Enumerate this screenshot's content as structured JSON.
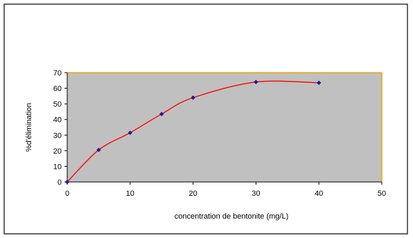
{
  "chart_data": {
    "type": "line",
    "title": "",
    "xlabel": "concentration de bentonite (mg/L)",
    "ylabel": "%d'élimination",
    "xlim": [
      0,
      50
    ],
    "ylim": [
      0,
      70
    ],
    "x_ticks": [
      0,
      10,
      20,
      30,
      40,
      50
    ],
    "y_ticks": [
      0,
      10,
      20,
      30,
      40,
      50,
      60,
      70
    ],
    "grid": false,
    "legend": "none",
    "plot_background": "#c0c0c0",
    "series": [
      {
        "x": [
          0,
          5,
          10,
          15,
          20,
          30,
          40
        ],
        "y": [
          0,
          20.5,
          31.5,
          43.5,
          54,
          64,
          63.5
        ],
        "line_color": "#ff0000",
        "marker_color": "#1a1aa0",
        "marker": "diamond",
        "smooth": true
      }
    ]
  }
}
